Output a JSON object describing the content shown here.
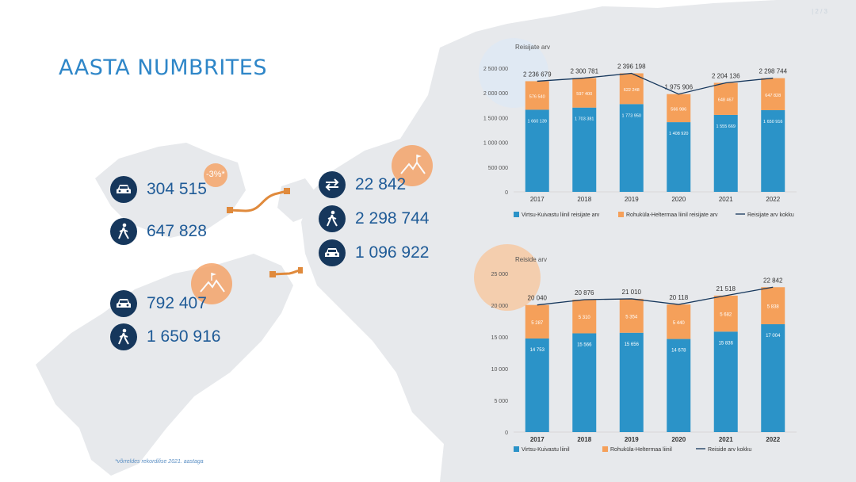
{
  "header": {
    "title": "AASTA NUMBRITES",
    "corner_text": "| 2 / 3"
  },
  "stats": [
    {
      "icon": "car-icon",
      "value": "304 515"
    },
    {
      "icon": "walking-person-icon",
      "value": "647 828"
    },
    {
      "icon": "swap-arrows-icon",
      "value": "22 842"
    },
    {
      "icon": "walking-person-icon",
      "value": "2 298 744"
    },
    {
      "icon": "car-icon",
      "value": "1 096 922"
    },
    {
      "icon": "car-icon",
      "value": "792 407"
    },
    {
      "icon": "walking-person-icon",
      "value": "1 650 916"
    }
  ],
  "badge_pct": "-3%*",
  "footnote": "*võrreldes rekordilise 2021. aastaga",
  "colors": {
    "blue": "#2b93c8",
    "orange": "#f5a05a",
    "navy": "#16375c",
    "accent": "#2e86c8"
  },
  "chart_data": [
    {
      "type": "bar",
      "title": "Reisijate arv",
      "categories": [
        "2017",
        "2018",
        "2019",
        "2020",
        "2021",
        "2022"
      ],
      "series": [
        {
          "name": "Virtsu-Kuivastu liinil reisijate arv",
          "values": [
            1660139,
            1703381,
            1773950,
            1408920,
            1555669,
            1650916
          ],
          "labels": [
            "1 660 139",
            "1 703 381",
            "1 773 950",
            "1 408 920",
            "1 555 669",
            "1 650 916"
          ]
        },
        {
          "name": "Rohuküla-Heltermaa liinil reisijate arv",
          "values": [
            576540,
            597400,
            622248,
            566986,
            648467,
            647828
          ],
          "labels": [
            "576 540",
            "597 400",
            "622 248",
            "566 986",
            "648 467",
            "647 828"
          ]
        },
        {
          "name": "Reisijate arv kokku",
          "values": [
            2236679,
            2300781,
            2396198,
            1975906,
            2204136,
            2298744
          ],
          "labels": [
            "2 236 679",
            "2 300 781",
            "2 396 198",
            "1 975 906",
            "2 204 136",
            "2 298 744"
          ]
        }
      ],
      "yticks": [
        "0",
        "500 000",
        "1 000 000",
        "1 500 000",
        "2 000 000",
        "2 500 000"
      ],
      "ylim": [
        0,
        2500000
      ]
    },
    {
      "type": "bar",
      "title": "Reiside arv",
      "categories": [
        "2017",
        "2018",
        "2019",
        "2020",
        "2021",
        "2022"
      ],
      "series": [
        {
          "name": "Virtsu-Kuivastu liinil",
          "values": [
            14753,
            15566,
            15656,
            14678,
            15836,
            17004
          ],
          "labels": [
            "14 753",
            "15 566",
            "15 656",
            "14 678",
            "15 836",
            "17 004"
          ]
        },
        {
          "name": "Rohuküla-Heltermaa liinil",
          "values": [
            5287,
            5310,
            5354,
            5440,
            5682,
            5838
          ],
          "labels": [
            "5 287",
            "5 310",
            "5 354",
            "5 440",
            "5 682",
            "5 838"
          ]
        },
        {
          "name": "Reiside arv kokku",
          "values": [
            20040,
            20876,
            21010,
            20118,
            21518,
            22842
          ],
          "labels": [
            "20 040",
            "20 876",
            "21 010",
            "20 118",
            "21 518",
            "22 842"
          ]
        }
      ],
      "yticks": [
        "0",
        "5 000",
        "10 000",
        "15 000",
        "20 000",
        "25 000"
      ],
      "ylim": [
        0,
        25000
      ]
    }
  ]
}
